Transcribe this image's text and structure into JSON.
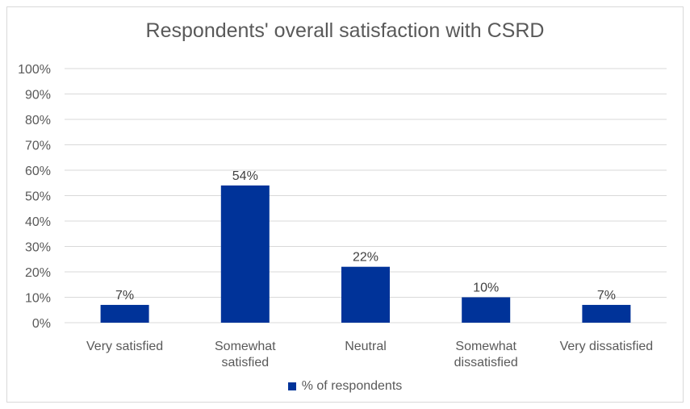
{
  "chart_data": {
    "type": "bar",
    "title": "Respondents' overall satisfaction with CSRD",
    "categories": [
      [
        "Very satisfied"
      ],
      [
        "Somewhat",
        "satisfied"
      ],
      [
        "Neutral"
      ],
      [
        "Somewhat",
        "dissatisfied"
      ],
      [
        "Very dissatisfied"
      ]
    ],
    "series": [
      {
        "name": "% of respondents",
        "values": [
          7,
          54,
          22,
          10,
          7
        ],
        "labels": [
          "7%",
          "54%",
          "22%",
          "10%",
          "7%"
        ],
        "color": "#003399"
      }
    ],
    "ylim": [
      0,
      100
    ],
    "yticks": [
      "0%",
      "10%",
      "20%",
      "30%",
      "40%",
      "50%",
      "60%",
      "70%",
      "80%",
      "90%",
      "100%"
    ],
    "ytick_values": [
      0,
      10,
      20,
      30,
      40,
      50,
      60,
      70,
      80,
      90,
      100
    ],
    "grid": true,
    "legend_position": "bottom",
    "gridline_color": "#d9d9d9"
  }
}
